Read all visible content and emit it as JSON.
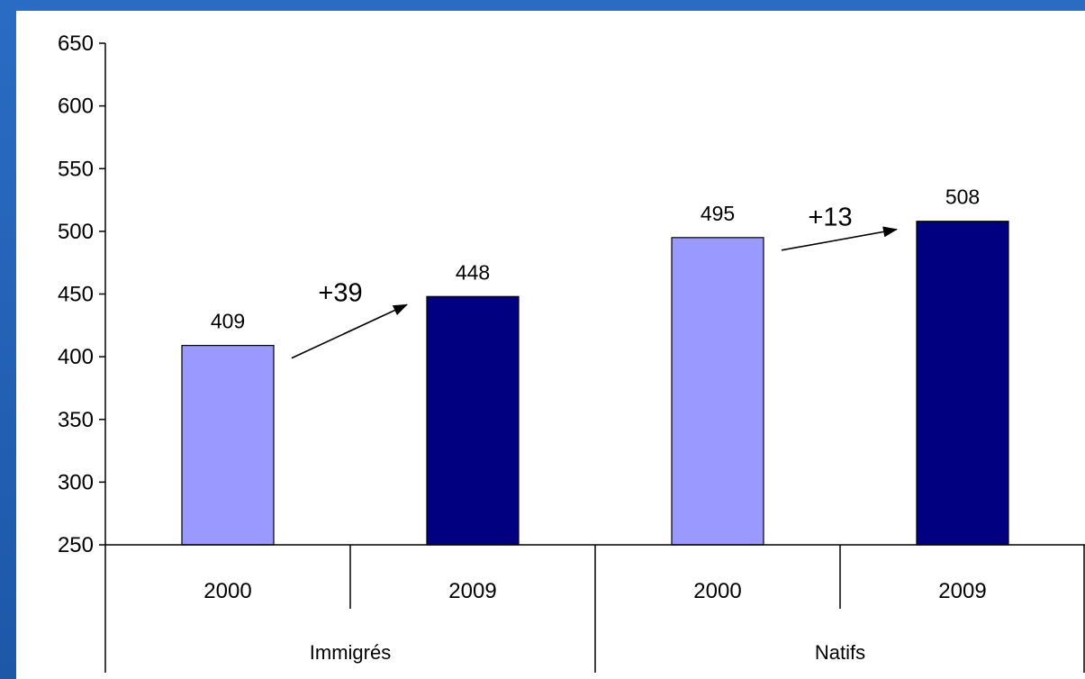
{
  "chart_data": {
    "type": "bar",
    "title": "",
    "xlabel": "",
    "ylabel": "",
    "ylim": [
      250,
      650
    ],
    "yticks": [
      250,
      300,
      350,
      400,
      450,
      500,
      550,
      600,
      650
    ],
    "groups": [
      {
        "label": "Immigrés",
        "categories": [
          "2000",
          "2009"
        ],
        "values": [
          409,
          448
        ]
      },
      {
        "label": "Natifs",
        "categories": [
          "2000",
          "2009"
        ],
        "values": [
          495,
          508
        ]
      }
    ],
    "annotations": [
      "+39",
      "+13"
    ],
    "colors": {
      "2000": "#9999ff",
      "2009": "#000080"
    },
    "grid": false,
    "legend": "none"
  }
}
